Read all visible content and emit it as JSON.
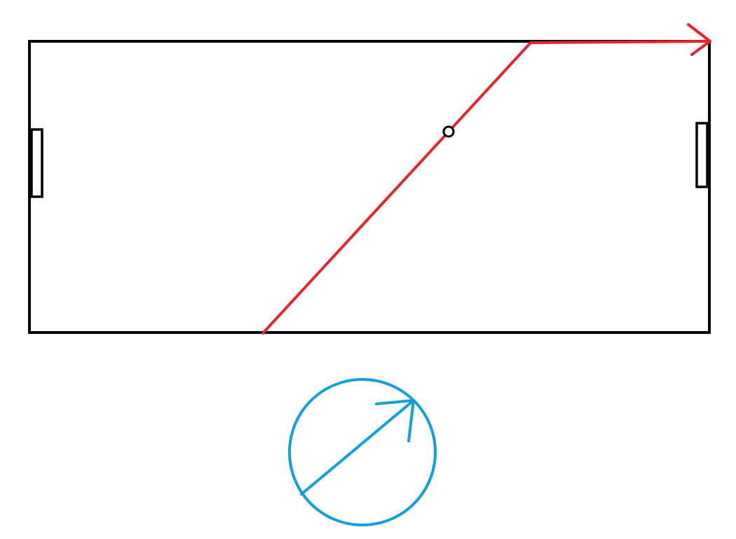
{
  "colors": {
    "background": "#ffffff",
    "field_outline": "#000000",
    "trajectory": "#e3262e",
    "direction_indicator": "#12a0dc"
  },
  "diagram": {
    "elements": [
      "field-boundary",
      "left-goal",
      "right-goal",
      "ball",
      "ball-trajectory",
      "trajectory-arrowhead",
      "direction-circle",
      "direction-arrow"
    ]
  }
}
